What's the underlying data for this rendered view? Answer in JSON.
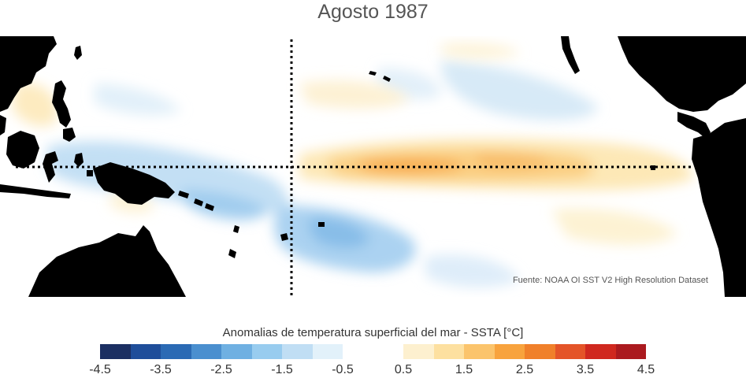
{
  "title": "Agosto 1987",
  "source": "Fuente: NOAA OI SST V2 High Resolution Dataset",
  "colorbar": {
    "label": "Anomalias de temperatura superficial del mar - SSTA  [°C]",
    "ticks": [
      "-4.5",
      "-3.5",
      "-2.5",
      "-1.5",
      "-0.5",
      "0.5",
      "1.5",
      "2.5",
      "3.5",
      "4.5"
    ],
    "colors": [
      "#1b2f62",
      "#1f4e9a",
      "#2b6ab4",
      "#4a8fcf",
      "#6fb0e2",
      "#98ccef",
      "#c0def4",
      "#e2f1fa",
      "#ffffff",
      "#ffffff",
      "#fdf0cf",
      "#fde0a0",
      "#fbc46c",
      "#f8a33d",
      "#f0802a",
      "#e45428",
      "#d0281f",
      "#ab1a1f"
    ]
  },
  "map": {
    "land_color": "#000000",
    "ocean_color": "#ffffff",
    "reference_lines": [
      "equator",
      "dateline"
    ]
  }
}
